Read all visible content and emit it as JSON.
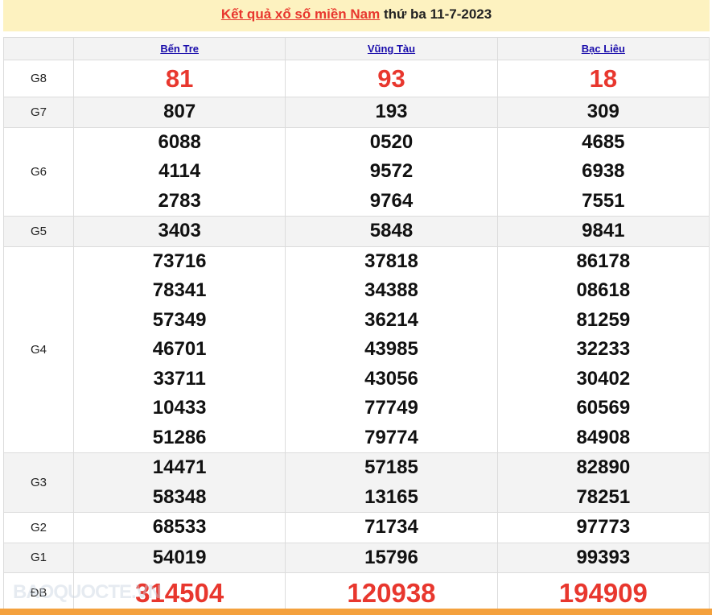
{
  "title": {
    "link": "Kết quả xổ số miền Nam",
    "rest": " thứ ba 11-7-2023"
  },
  "provinces": [
    "Bến Tre",
    "Vũng Tàu",
    "Bạc Liêu"
  ],
  "prizes": [
    {
      "label": "G8",
      "style": "big",
      "values": [
        [
          "81"
        ],
        [
          "93"
        ],
        [
          "18"
        ]
      ]
    },
    {
      "label": "G7",
      "values": [
        [
          "807"
        ],
        [
          "193"
        ],
        [
          "309"
        ]
      ]
    },
    {
      "label": "G6",
      "values": [
        [
          "6088",
          "4114",
          "2783"
        ],
        [
          "0520",
          "9572",
          "9764"
        ],
        [
          "4685",
          "6938",
          "7551"
        ]
      ]
    },
    {
      "label": "G5",
      "values": [
        [
          "3403"
        ],
        [
          "5848"
        ],
        [
          "9841"
        ]
      ]
    },
    {
      "label": "G4",
      "values": [
        [
          "73716",
          "78341",
          "57349",
          "46701",
          "33711",
          "10433",
          "51286"
        ],
        [
          "37818",
          "34388",
          "36214",
          "43985",
          "43056",
          "77749",
          "79774"
        ],
        [
          "86178",
          "08618",
          "81259",
          "32233",
          "30402",
          "60569",
          "84908"
        ]
      ]
    },
    {
      "label": "G3",
      "values": [
        [
          "14471",
          "58348"
        ],
        [
          "57185",
          "13165"
        ],
        [
          "82890",
          "78251"
        ]
      ]
    },
    {
      "label": "G2",
      "values": [
        [
          "68533"
        ],
        [
          "71734"
        ],
        [
          "97773"
        ]
      ]
    },
    {
      "label": "G1",
      "values": [
        [
          "54019"
        ],
        [
          "15796"
        ],
        [
          "99393"
        ]
      ]
    },
    {
      "label": "ĐB",
      "style": "db",
      "values": [
        [
          "314504"
        ],
        [
          "120938"
        ],
        [
          "194909"
        ]
      ]
    }
  ],
  "watermark": "BAOQUOCTE.VN",
  "colors": {
    "accent": "#e8372e",
    "link": "#1a0dab",
    "banner": "#fdf2c0",
    "footer": "#f4a13d"
  }
}
